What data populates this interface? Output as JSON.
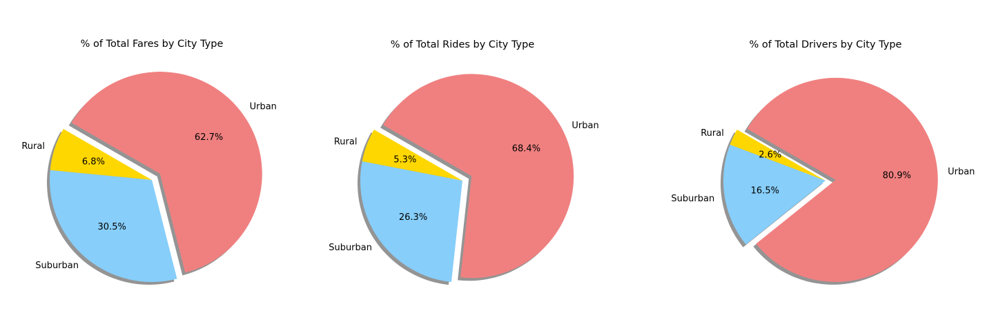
{
  "chart_data": [
    {
      "type": "pie",
      "title": "% of Total Fares by City Type",
      "categories": [
        "Rural",
        "Suburban",
        "Urban"
      ],
      "values": [
        6.8,
        30.5,
        62.7
      ],
      "value_labels": [
        "6.8%",
        "30.5%",
        "62.7%"
      ],
      "colors": [
        "#FFD700",
        "#87CEFA",
        "#F08080"
      ],
      "explode": [
        0,
        0,
        0.1
      ],
      "shadow": true,
      "start_angle_deg": 150
    },
    {
      "type": "pie",
      "title": "% of Total Rides by City Type",
      "categories": [
        "Rural",
        "Suburban",
        "Urban"
      ],
      "values": [
        5.3,
        26.3,
        68.4
      ],
      "value_labels": [
        "5.3%",
        "26.3%",
        "68.4%"
      ],
      "colors": [
        "#FFD700",
        "#87CEFA",
        "#F08080"
      ],
      "explode": [
        0,
        0,
        0.1
      ],
      "shadow": true,
      "start_angle_deg": 150
    },
    {
      "type": "pie",
      "title": "% of Total Drivers by City Type",
      "categories": [
        "Rural",
        "Suburban",
        "Urban"
      ],
      "values": [
        2.6,
        16.5,
        80.9
      ],
      "value_labels": [
        "2.6%",
        "16.5%",
        "80.9%"
      ],
      "colors": [
        "#FFD700",
        "#87CEFA",
        "#F08080"
      ],
      "explode": [
        0,
        0,
        0.1
      ],
      "shadow": true,
      "start_angle_deg": 150
    }
  ]
}
